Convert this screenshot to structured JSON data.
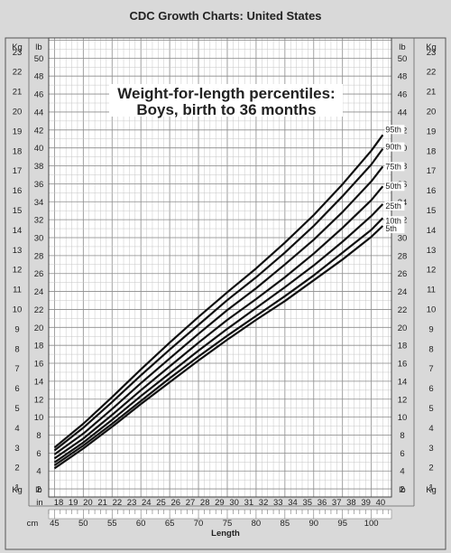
{
  "header": "CDC Growth Charts: United States",
  "chart_data": {
    "type": "line",
    "title": "Weight-for-length percentiles:",
    "subtitle": "Boys, birth to 36 months",
    "xlabel": "Length",
    "xunit_cm": "cm",
    "xunit_in": "in",
    "yunit_kg": "Kg",
    "yunit_lb": "lb",
    "xlim_cm": [
      44,
      103.5
    ],
    "ylim_kg": [
      0.5,
      23.7
    ],
    "kg_ticks": [
      1,
      2,
      3,
      4,
      5,
      6,
      7,
      8,
      9,
      10,
      11,
      12,
      13,
      14,
      15,
      16,
      17,
      18,
      19,
      20,
      21,
      22,
      23
    ],
    "lb_ticks": [
      2,
      4,
      6,
      8,
      10,
      12,
      14,
      16,
      18,
      20,
      22,
      24,
      26,
      28,
      30,
      32,
      34,
      36,
      38,
      40,
      42,
      44,
      46,
      48,
      50
    ],
    "cm_ticks": [
      45,
      50,
      55,
      60,
      65,
      70,
      75,
      80,
      85,
      90,
      95,
      100
    ],
    "in_ticks": [
      18,
      19,
      20,
      21,
      22,
      23,
      24,
      25,
      26,
      27,
      28,
      29,
      30,
      31,
      32,
      33,
      34,
      35,
      36,
      37,
      38,
      39,
      40
    ],
    "x": [
      45,
      50,
      55,
      60,
      65,
      70,
      75,
      80,
      85,
      90,
      95,
      100,
      102
    ],
    "series": [
      {
        "name": "95th",
        "values": [
          3.0,
          4.2,
          5.55,
          6.95,
          8.3,
          9.6,
          10.85,
          12.05,
          13.35,
          14.75,
          16.3,
          18.0,
          18.8
        ]
      },
      {
        "name": "90th",
        "values": [
          2.85,
          4.0,
          5.3,
          6.65,
          7.95,
          9.2,
          10.45,
          11.6,
          12.85,
          14.2,
          15.7,
          17.3,
          18.1
        ]
      },
      {
        "name": "75th",
        "values": [
          2.65,
          3.7,
          4.95,
          6.25,
          7.5,
          8.75,
          9.95,
          11.05,
          12.25,
          13.5,
          14.9,
          16.45,
          17.2
        ]
      },
      {
        "name": "50th",
        "values": [
          2.45,
          3.45,
          4.65,
          5.9,
          7.1,
          8.3,
          9.45,
          10.5,
          11.6,
          12.8,
          14.1,
          15.5,
          16.2
        ]
      },
      {
        "name": "25th",
        "values": [
          2.25,
          3.25,
          4.4,
          5.6,
          6.75,
          7.9,
          9.0,
          10.05,
          11.1,
          12.2,
          13.4,
          14.7,
          15.3
        ]
      },
      {
        "name": "10th",
        "values": [
          2.1,
          3.1,
          4.2,
          5.35,
          6.5,
          7.6,
          8.65,
          9.65,
          10.65,
          11.7,
          12.85,
          14.0,
          14.6
        ]
      },
      {
        "name": "5th",
        "values": [
          1.95,
          2.95,
          4.05,
          5.2,
          6.3,
          7.4,
          8.45,
          9.45,
          10.4,
          11.45,
          12.5,
          13.65,
          14.2
        ]
      }
    ]
  }
}
